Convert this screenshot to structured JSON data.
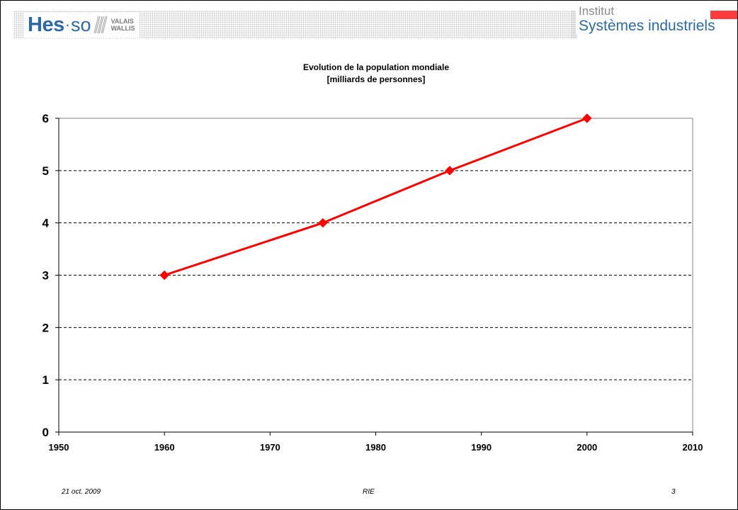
{
  "header": {
    "logo": {
      "brand": "Hes",
      "dot": "·",
      "suffix": "so",
      "region_line1": "VALAIS",
      "region_line2": "WALLIS"
    },
    "institute": {
      "line1": "Institut",
      "line2": "Systèmes industriels"
    },
    "accent_color": "#ff3b3b",
    "brand_color": "#2b6aa6"
  },
  "chart_data": {
    "type": "line",
    "title": "Evolution de la population mondiale",
    "subtitle": "[milliards de personnes]",
    "xlabel": "",
    "ylabel": "",
    "xlim": [
      1950,
      2010
    ],
    "ylim": [
      0,
      6
    ],
    "x_ticks": [
      "1950",
      "1960",
      "1970",
      "1980",
      "1990",
      "2000",
      "2010"
    ],
    "y_ticks": [
      "0",
      "1",
      "2",
      "3",
      "4",
      "5",
      "6"
    ],
    "grid": "horizontal dashed",
    "legend": "none",
    "series": [
      {
        "color": "#ff0000",
        "marker": "diamond",
        "points": [
          {
            "x": 1960,
            "y": 3
          },
          {
            "x": 1975,
            "y": 4
          },
          {
            "x": 1987,
            "y": 5
          },
          {
            "x": 2000,
            "y": 6
          }
        ]
      }
    ]
  },
  "footer": {
    "date": "21 oct. 2009",
    "center": "RIE",
    "page_number": "3"
  }
}
